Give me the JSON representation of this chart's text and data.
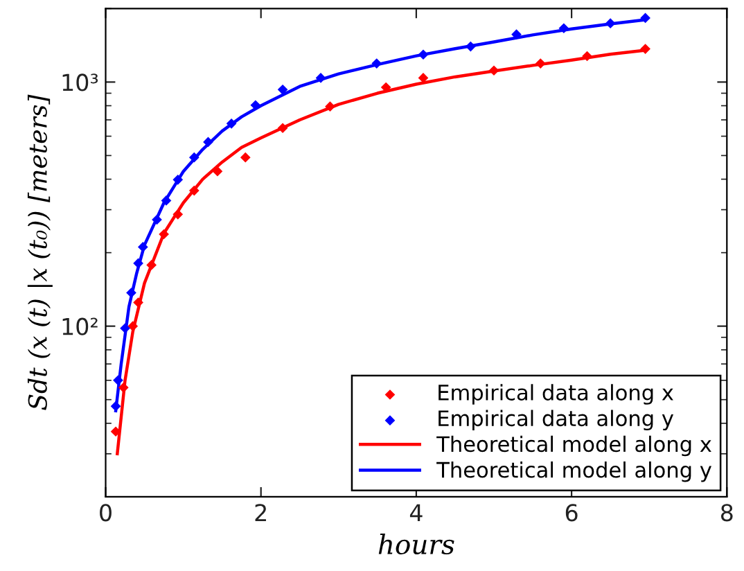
{
  "chart_data": {
    "type": "line",
    "xlabel": "hours",
    "ylabel": "Sdt (x (t) |x (t₀)) [meters]",
    "log": "y",
    "xlim": [
      0,
      8
    ],
    "xticks": [
      0,
      2,
      4,
      6,
      8
    ],
    "ylim": [
      20,
      2000
    ],
    "yticks": [
      {
        "value": 100,
        "label": "10²"
      },
      {
        "value": 1000,
        "label": "10³"
      }
    ],
    "grid": false,
    "legend": "bottom right",
    "series": [
      {
        "name": "Empirical data along x",
        "type": "scatter",
        "marker": "diamond",
        "color": "#ff0000",
        "x": [
          0.13,
          0.23,
          0.35,
          0.42,
          0.59,
          0.75,
          0.93,
          1.14,
          1.44,
          1.8,
          2.28,
          2.89,
          3.61,
          4.09,
          5.0,
          5.6,
          6.2,
          6.95
        ],
        "values": [
          37,
          56,
          100,
          125,
          178,
          238,
          287,
          359,
          431,
          491,
          648,
          794,
          951,
          1040,
          1115,
          1192,
          1277,
          1367
        ]
      },
      {
        "name": "Empirical data along y",
        "type": "scatter",
        "marker": "diamond",
        "color": "#0000ff",
        "x": [
          0.13,
          0.16,
          0.25,
          0.33,
          0.42,
          0.48,
          0.66,
          0.78,
          0.93,
          1.14,
          1.32,
          1.62,
          1.93,
          2.28,
          2.77,
          3.49,
          4.09,
          4.7,
          5.29,
          5.9,
          6.5,
          6.95
        ],
        "values": [
          47,
          60,
          98,
          137,
          181,
          211,
          273,
          327,
          398,
          491,
          568,
          676,
          804,
          931,
          1040,
          1192,
          1296,
          1399,
          1567,
          1661,
          1740,
          1830
        ]
      },
      {
        "name": "Theoretical model along x",
        "type": "line",
        "marker": "none",
        "color": "#ff0000",
        "x": [
          0.15,
          0.25,
          0.35,
          0.5,
          0.75,
          1.0,
          1.25,
          1.5,
          1.75,
          2.0,
          2.5,
          3.0,
          3.5,
          4.0,
          4.5,
          5.0,
          5.5,
          6.0,
          6.5,
          6.95
        ],
        "values": [
          30,
          60,
          95,
          150,
          240,
          320,
          400,
          470,
          540,
          590,
          700,
          810,
          900,
          980,
          1050,
          1110,
          1170,
          1230,
          1300,
          1350
        ]
      },
      {
        "name": "Theoretical model along y",
        "type": "line",
        "marker": "none",
        "color": "#0000ff",
        "x": [
          0.13,
          0.2,
          0.3,
          0.4,
          0.5,
          0.75,
          1.0,
          1.25,
          1.5,
          1.75,
          2.0,
          2.5,
          3.0,
          3.5,
          4.0,
          4.5,
          5.0,
          5.5,
          6.0,
          6.5,
          6.95
        ],
        "values": [
          45,
          70,
          120,
          165,
          215,
          320,
          430,
          530,
          630,
          720,
          800,
          960,
          1080,
          1180,
          1280,
          1370,
          1460,
          1560,
          1650,
          1730,
          1800
        ]
      }
    ]
  }
}
